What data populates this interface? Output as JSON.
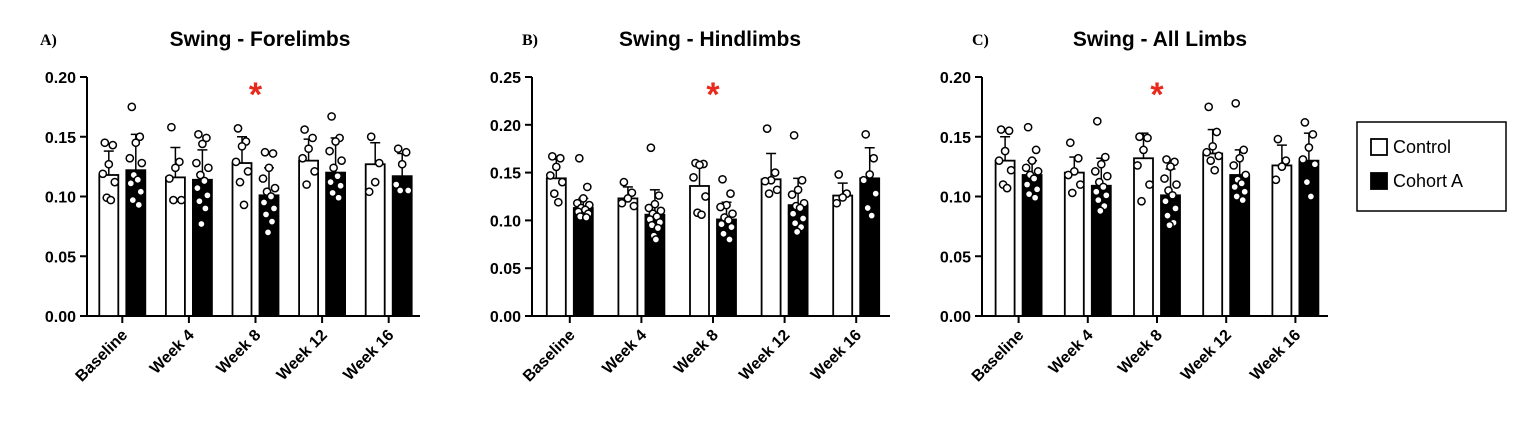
{
  "legend": {
    "items": [
      {
        "label": "Control",
        "fill": "#ffffff"
      },
      {
        "label": "Cohort A",
        "fill": "#000000"
      }
    ]
  },
  "colors": {
    "significance": "#e8291c",
    "control": "#ffffff",
    "cohort": "#000000"
  },
  "chart_data": [
    {
      "type": "bar",
      "panel_label": "A)",
      "title": "Swing - Forelimbs",
      "categories": [
        "Baseline",
        "Week 4",
        "Week 8",
        "Week 12",
        "Week 16"
      ],
      "ylim": [
        0,
        0.2
      ],
      "yticks": [
        "0.00",
        "0.05",
        "0.10",
        "0.15",
        "0.20"
      ],
      "significance": {
        "category": "Week 8",
        "symbol": "*"
      },
      "series": [
        {
          "name": "Control",
          "values": [
            0.118,
            0.116,
            0.128,
            0.13,
            0.127
          ],
          "sd": [
            0.02,
            0.025,
            0.022,
            0.018,
            0.018
          ],
          "points": [
            [
              0.145,
              0.143,
              0.127,
              0.119,
              0.112,
              0.099,
              0.097
            ],
            [
              0.158,
              0.129,
              0.124,
              0.115,
              0.097,
              0.097
            ],
            [
              0.157,
              0.146,
              0.142,
              0.129,
              0.121,
              0.112,
              0.093
            ],
            [
              0.156,
              0.149,
              0.14,
              0.132,
              0.121,
              0.11
            ],
            [
              0.15,
              0.128,
              0.112,
              0.104
            ]
          ]
        },
        {
          "name": "Cohort A",
          "values": [
            0.122,
            0.114,
            0.101,
            0.12,
            0.117
          ],
          "sd": [
            0.03,
            0.025,
            0.023,
            0.029,
            0.019
          ],
          "points": [
            [
              0.175,
              0.15,
              0.145,
              0.132,
              0.128,
              0.118,
              0.114,
              0.111,
              0.104,
              0.097,
              0.093
            ],
            [
              0.152,
              0.149,
              0.144,
              0.128,
              0.124,
              0.118,
              0.113,
              0.107,
              0.101,
              0.096,
              0.09,
              0.077
            ],
            [
              0.137,
              0.136,
              0.124,
              0.115,
              0.107,
              0.104,
              0.1,
              0.095,
              0.09,
              0.085,
              0.079,
              0.07
            ],
            [
              0.167,
              0.149,
              0.146,
              0.138,
              0.13,
              0.124,
              0.117,
              0.112,
              0.109,
              0.103,
              0.099
            ],
            [
              0.14,
              0.137,
              0.127,
              0.11,
              0.105,
              0.105
            ]
          ]
        }
      ]
    },
    {
      "type": "bar",
      "panel_label": "B)",
      "title": "Swing - Hindlimbs",
      "categories": [
        "Baseline",
        "Week 4",
        "Week 8",
        "Week 12",
        "Week 16"
      ],
      "ylim": [
        0,
        0.25
      ],
      "yticks": [
        "0.00",
        "0.05",
        "0.10",
        "0.15",
        "0.20",
        "0.25"
      ],
      "significance": {
        "category": "Week 8",
        "symbol": "*"
      },
      "series": [
        {
          "name": "Control",
          "values": [
            0.144,
            0.123,
            0.136,
            0.143,
            0.126
          ],
          "sd": [
            0.02,
            0.012,
            0.025,
            0.027,
            0.013
          ],
          "points": [
            [
              0.167,
              0.165,
              0.156,
              0.147,
              0.14,
              0.128,
              0.119
            ],
            [
              0.14,
              0.129,
              0.123,
              0.118,
              0.115
            ],
            [
              0.16,
              0.159,
              0.158,
              0.145,
              0.125,
              0.108,
              0.106
            ],
            [
              0.196,
              0.15,
              0.142,
              0.141,
              0.132,
              0.128
            ],
            [
              0.148,
              0.128,
              0.124,
              0.118
            ]
          ]
        },
        {
          "name": "Cohort A",
          "values": [
            0.113,
            0.106,
            0.101,
            0.116,
            0.144
          ],
          "sd": [
            0.01,
            0.026,
            0.018,
            0.028,
            0.032
          ],
          "points": [
            [
              0.165,
              0.135,
              0.123,
              0.118,
              0.116,
              0.113,
              0.111,
              0.109,
              0.107,
              0.104,
              0.103
            ],
            [
              0.176,
              0.126,
              0.117,
              0.113,
              0.11,
              0.107,
              0.104,
              0.101,
              0.098,
              0.095,
              0.092,
              0.084,
              0.08
            ],
            [
              0.143,
              0.128,
              0.116,
              0.114,
              0.107,
              0.103,
              0.1,
              0.096,
              0.093,
              0.086,
              0.08
            ],
            [
              0.189,
              0.142,
              0.132,
              0.127,
              0.118,
              0.115,
              0.113,
              0.107,
              0.102,
              0.097,
              0.093,
              0.088
            ],
            [
              0.19,
              0.165,
              0.148,
              0.142,
              0.128,
              0.113,
              0.105
            ]
          ]
        }
      ]
    },
    {
      "type": "bar",
      "panel_label": "C)",
      "title": "Swing - All Limbs",
      "categories": [
        "Baseline",
        "Week 4",
        "Week 8",
        "Week 12",
        "Week 16"
      ],
      "ylim": [
        0,
        0.2
      ],
      "yticks": [
        "0.00",
        "0.05",
        "0.10",
        "0.15",
        "0.20"
      ],
      "significance": {
        "category": "Week 8",
        "symbol": "*"
      },
      "series": [
        {
          "name": "Control",
          "values": [
            0.13,
            0.12,
            0.132,
            0.136,
            0.126
          ],
          "sd": [
            0.02,
            0.013,
            0.021,
            0.02,
            0.017
          ],
          "points": [
            [
              0.156,
              0.155,
              0.138,
              0.13,
              0.122,
              0.11,
              0.107
            ],
            [
              0.145,
              0.132,
              0.121,
              0.118,
              0.11,
              0.103
            ],
            [
              0.15,
              0.149,
              0.139,
              0.126,
              0.11,
              0.096
            ],
            [
              0.175,
              0.154,
              0.142,
              0.137,
              0.134,
              0.13,
              0.122
            ],
            [
              0.148,
              0.13,
              0.125,
              0.114
            ]
          ]
        },
        {
          "name": "Cohort A",
          "values": [
            0.118,
            0.109,
            0.101,
            0.118,
            0.13
          ],
          "sd": [
            0.012,
            0.023,
            0.022,
            0.021,
            0.023
          ],
          "points": [
            [
              0.158,
              0.139,
              0.13,
              0.124,
              0.121,
              0.118,
              0.115,
              0.11,
              0.106,
              0.102,
              0.099
            ],
            [
              0.163,
              0.133,
              0.127,
              0.121,
              0.117,
              0.112,
              0.108,
              0.104,
              0.101,
              0.097,
              0.092,
              0.088
            ],
            [
              0.131,
              0.129,
              0.125,
              0.115,
              0.11,
              0.105,
              0.101,
              0.096,
              0.09,
              0.084,
              0.078,
              0.076
            ],
            [
              0.178,
              0.139,
              0.132,
              0.126,
              0.118,
              0.114,
              0.111,
              0.108,
              0.104,
              0.1,
              0.097
            ],
            [
              0.162,
              0.152,
              0.141,
              0.131,
              0.127,
              0.112,
              0.1
            ]
          ]
        }
      ]
    }
  ]
}
